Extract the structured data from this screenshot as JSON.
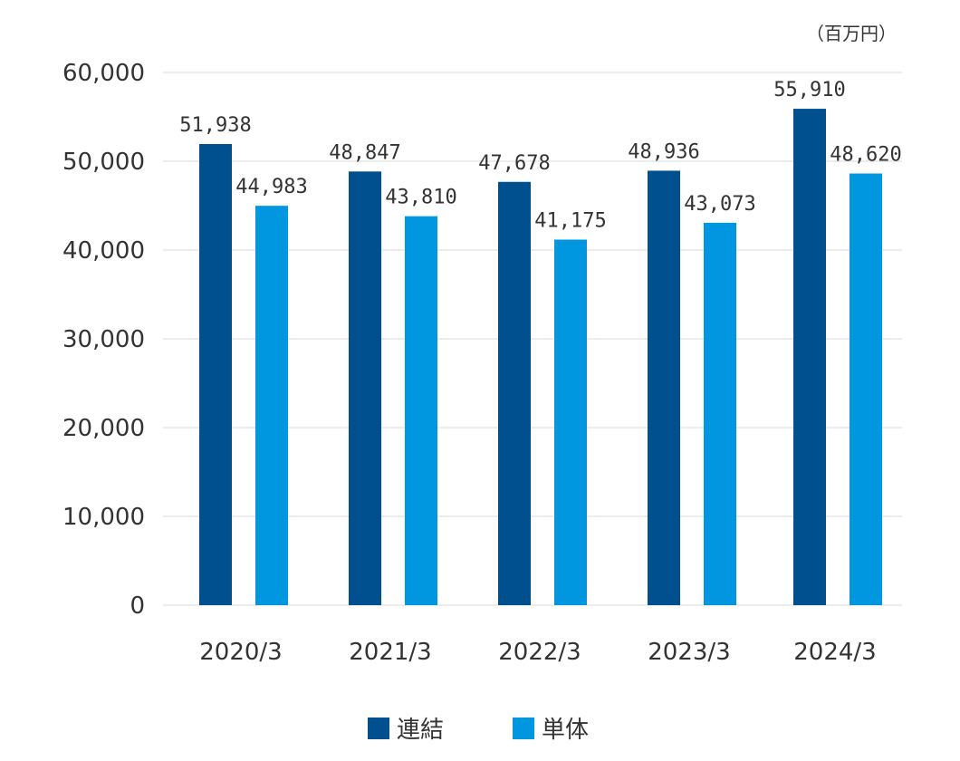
{
  "chart_data": {
    "type": "bar",
    "unit_note": "（百万円）",
    "categories": [
      "2020/3",
      "2021/3",
      "2022/3",
      "2023/3",
      "2024/3"
    ],
    "series": [
      {
        "name": "連結",
        "color": "#004F8F",
        "values": [
          51938,
          48847,
          47678,
          48936,
          55910
        ]
      },
      {
        "name": "単体",
        "color": "#0096E0",
        "values": [
          44983,
          43810,
          41175,
          43073,
          48620
        ]
      }
    ],
    "data_labels": [
      [
        "51,938",
        "48,847",
        "47,678",
        "48,936",
        "55,910"
      ],
      [
        "44,983",
        "43,810",
        "41,175",
        "43,073",
        "48,620"
      ]
    ],
    "yticks": [
      "0",
      "10,000",
      "20,000",
      "30,000",
      "40,000",
      "50,000",
      "60,000"
    ],
    "ylim": [
      0,
      60000
    ],
    "grid": true,
    "legend_position": "bottom-center"
  }
}
